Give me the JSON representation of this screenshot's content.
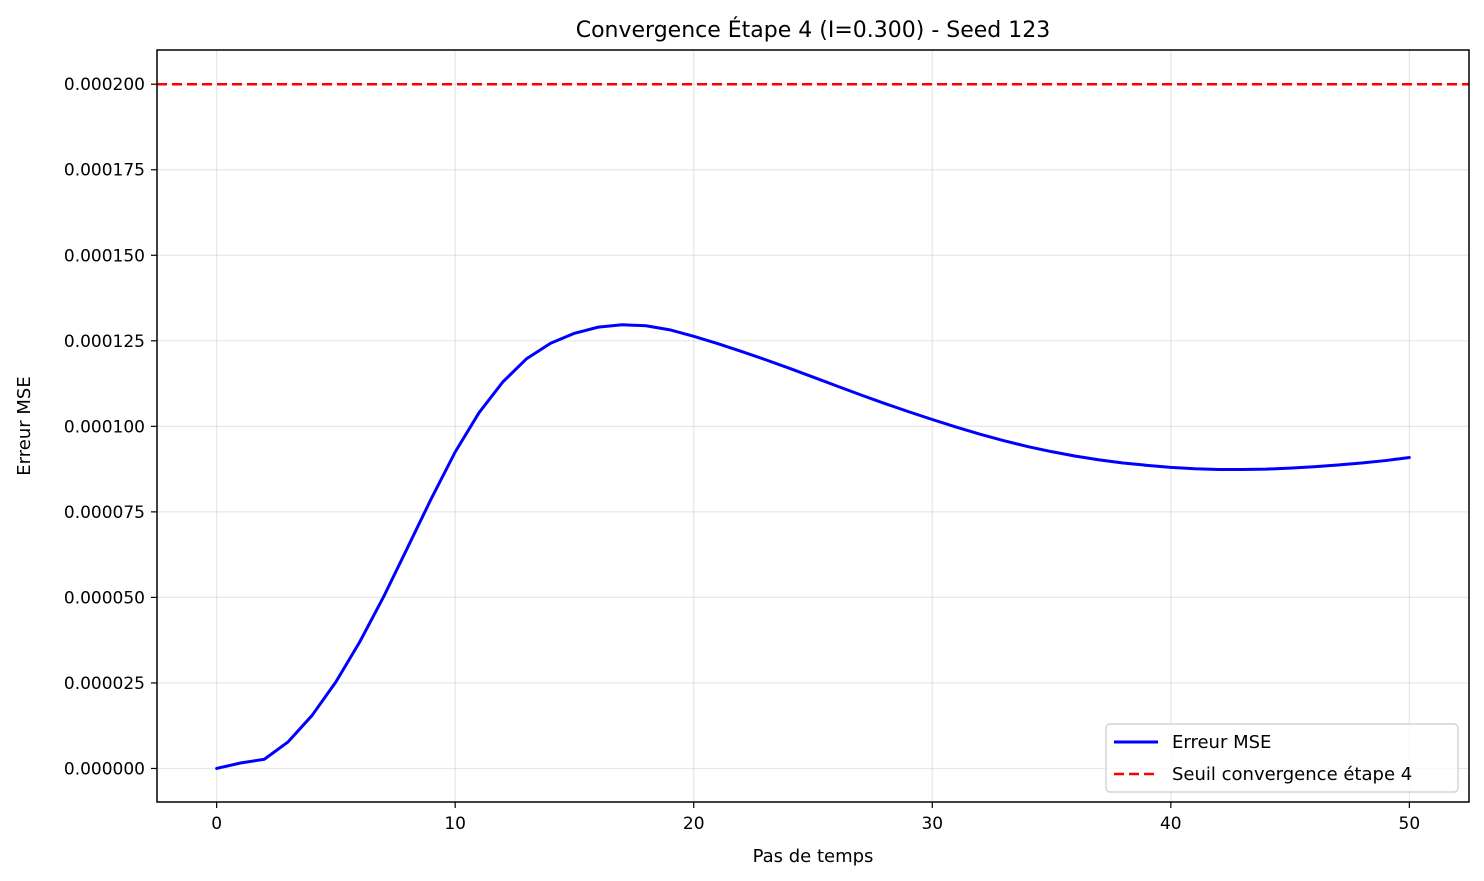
{
  "chart_data": {
    "type": "line",
    "title": "Convergence Étape 4 (I=0.300) - Seed 123",
    "xlabel": "Pas de temps",
    "ylabel": "Erreur MSE",
    "xlim": [
      -2.5,
      52.5
    ],
    "ylim": [
      -9.8e-06,
      0.00021
    ],
    "xticks": [
      0,
      10,
      20,
      30,
      40,
      50
    ],
    "xtick_labels": [
      "0",
      "10",
      "20",
      "30",
      "40",
      "50"
    ],
    "yticks": [
      0,
      2.5e-05,
      5e-05,
      7.5e-05,
      0.0001,
      0.000125,
      0.00015,
      0.000175,
      0.0002
    ],
    "ytick_labels": [
      "0.000000",
      "0.000025",
      "0.000050",
      "0.000075",
      "0.000100",
      "0.000125",
      "0.000150",
      "0.000175",
      "0.000200"
    ],
    "grid": true,
    "legend_position": "bottom-right",
    "series": [
      {
        "name": "Erreur MSE",
        "color": "#0000ff",
        "style": "solid",
        "x": [
          0,
          1,
          2,
          3,
          4,
          5,
          6,
          7,
          8,
          9,
          10,
          11,
          12,
          13,
          14,
          15,
          16,
          17,
          18,
          19,
          20,
          21,
          22,
          23,
          24,
          25,
          26,
          27,
          28,
          29,
          30,
          31,
          32,
          33,
          34,
          35,
          36,
          37,
          38,
          39,
          40,
          41,
          42,
          43,
          44,
          45,
          46,
          47,
          48,
          49,
          50
        ],
        "values": [
          0.0,
          1.6e-06,
          2.7e-06,
          7.8e-06,
          1.55e-05,
          2.53e-05,
          3.7e-05,
          5.02e-05,
          6.45e-05,
          7.89e-05,
          9.25e-05,
          0.000104,
          0.000113,
          0.0001198,
          0.0001243,
          0.0001272,
          0.000129,
          0.0001297,
          0.0001294,
          0.0001282,
          0.0001263,
          0.0001242,
          0.0001219,
          0.0001195,
          0.000117,
          0.0001144,
          0.0001118,
          0.0001092,
          0.0001067,
          0.0001043,
          0.000102,
          9.98e-05,
          9.77e-05,
          9.58e-05,
          9.41e-05,
          9.26e-05,
          9.13e-05,
          9.02e-05,
          8.93e-05,
          8.86e-05,
          8.8e-05,
          8.76e-05,
          8.74e-05,
          8.74e-05,
          8.75e-05,
          8.78e-05,
          8.82e-05,
          8.87e-05,
          8.93e-05,
          9e-05,
          9.09e-05
        ]
      },
      {
        "name": "Seuil convergence étape 4",
        "color": "#ff0000",
        "style": "dashed",
        "hline": 0.0002
      }
    ]
  }
}
